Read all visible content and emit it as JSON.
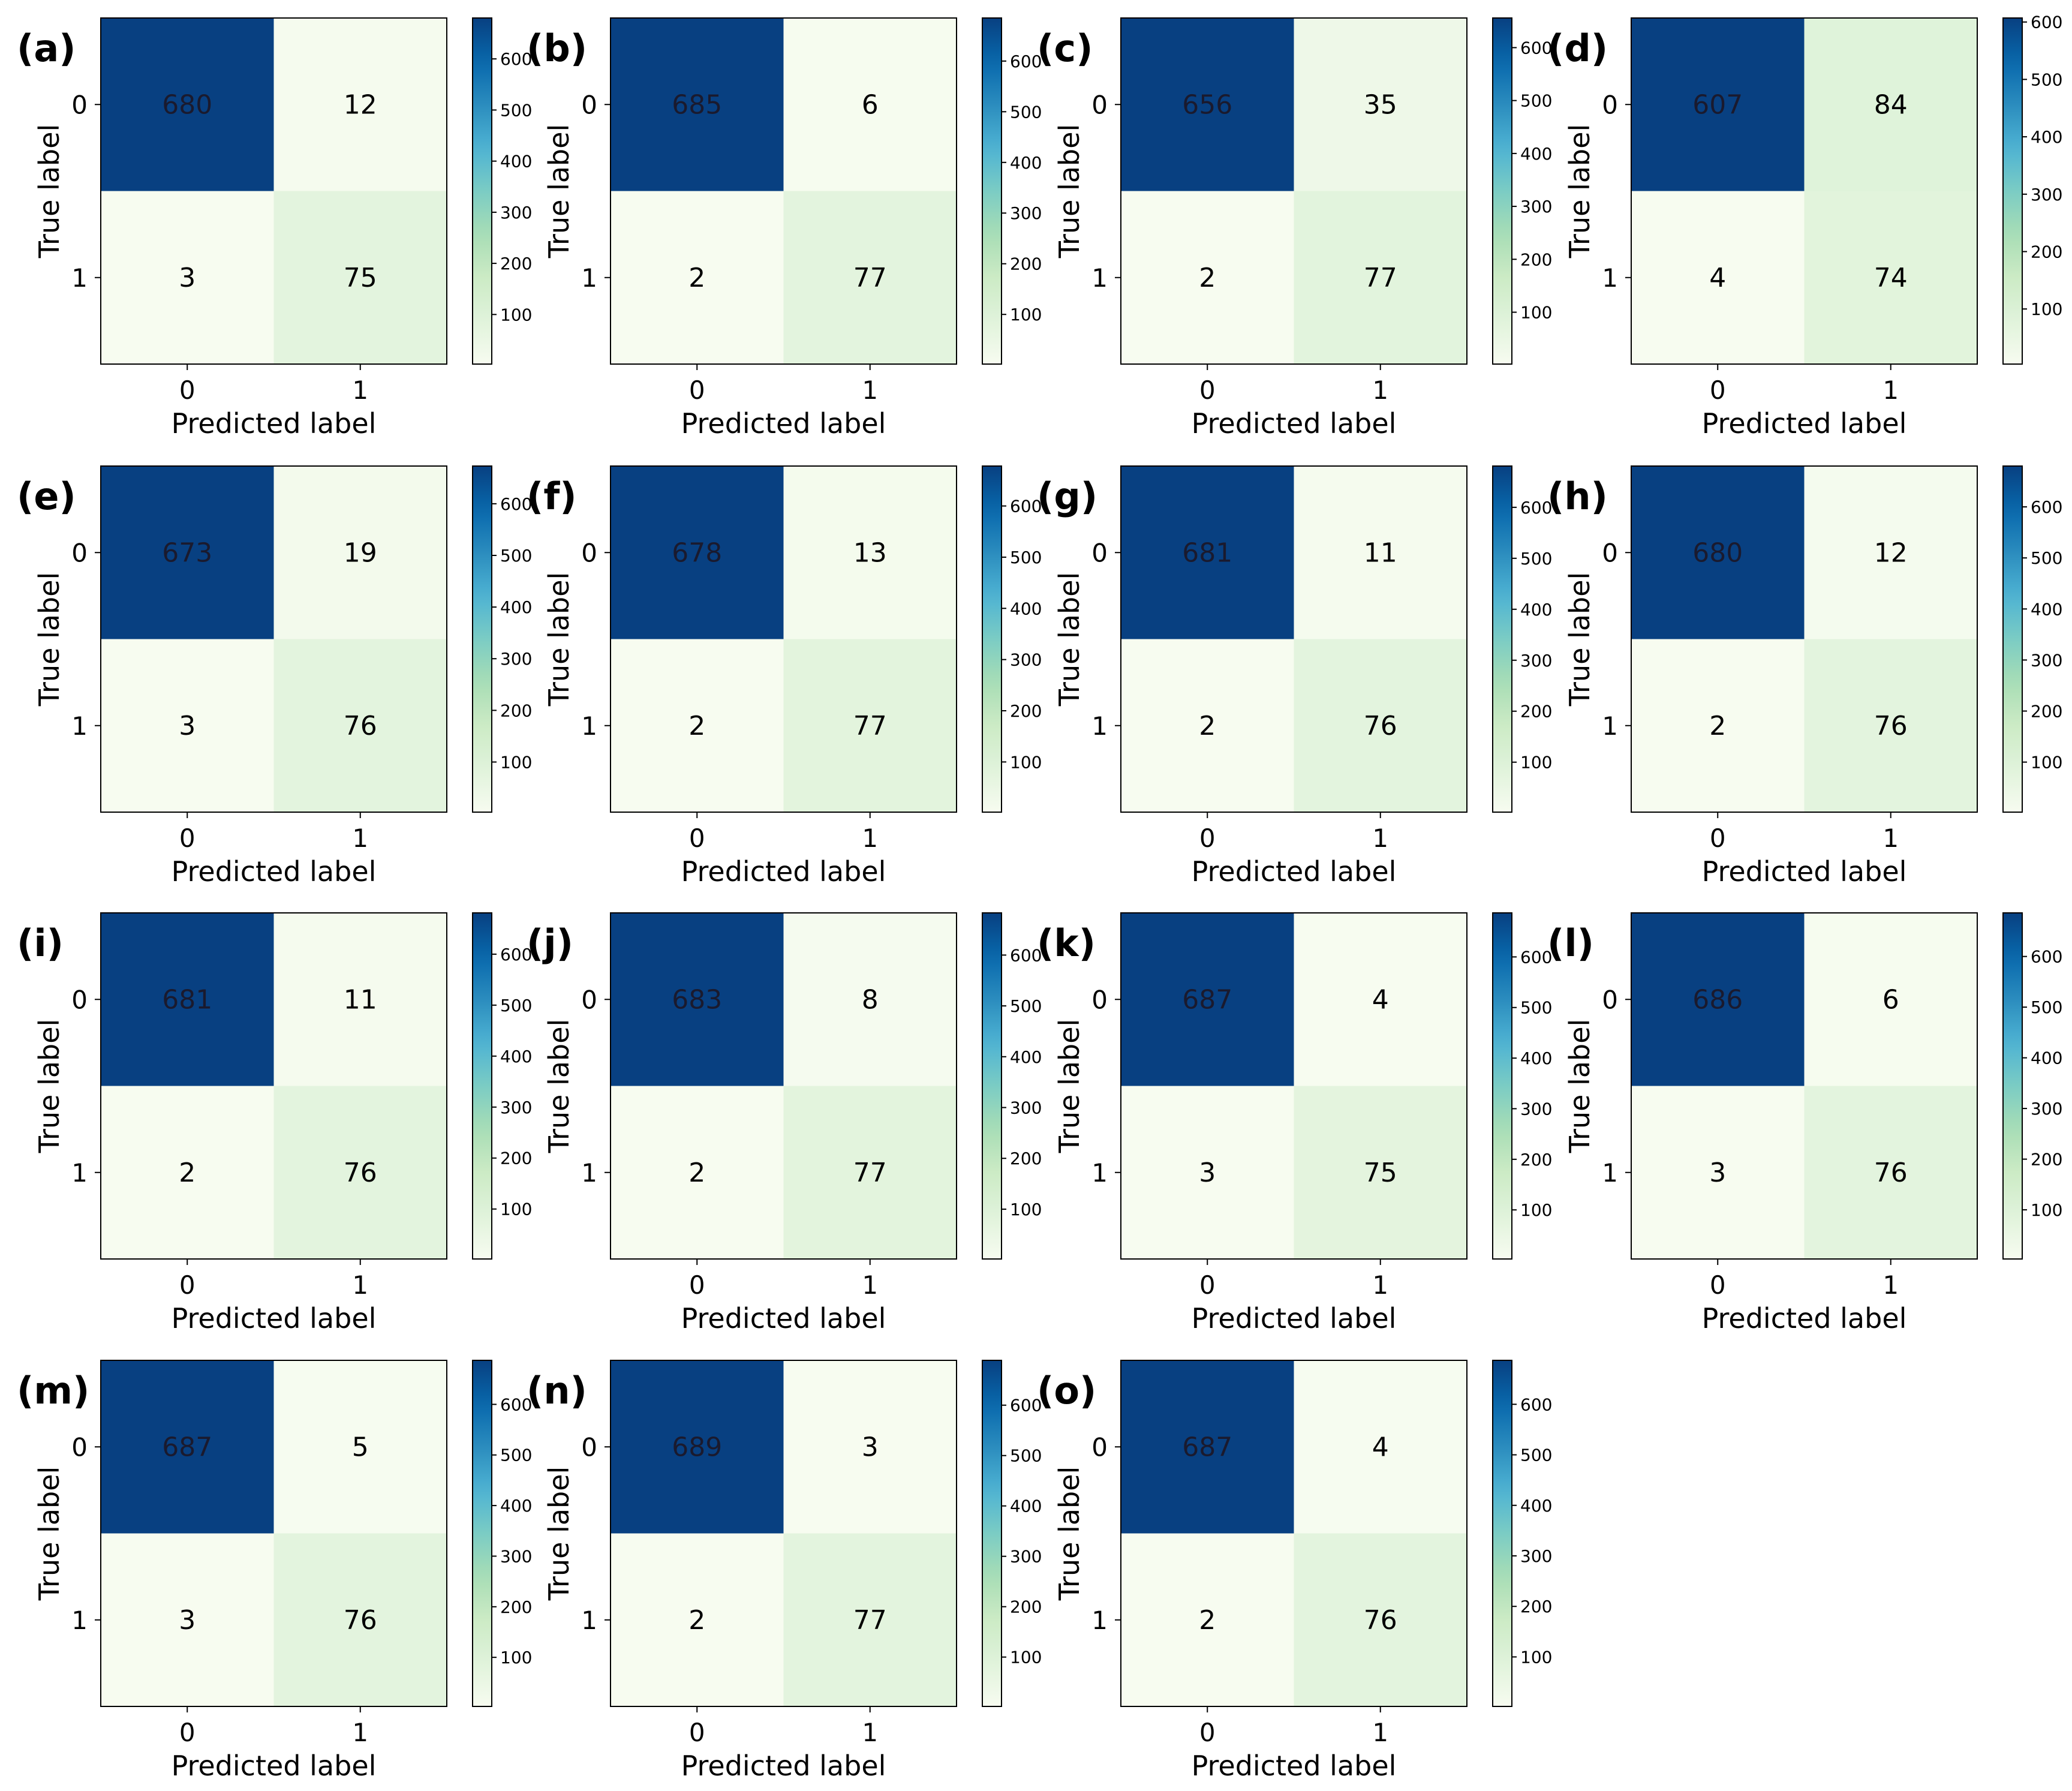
{
  "chart_data": [
    {
      "type": "heatmap",
      "panel": "(a)",
      "xlabel": "Predicted label",
      "ylabel": "True label",
      "x_ticks": [
        "0",
        "1"
      ],
      "y_ticks": [
        "0",
        "1"
      ],
      "values": [
        [
          680,
          12
        ],
        [
          3,
          75
        ]
      ],
      "colorbar_ticks": [
        100,
        200,
        300,
        400,
        500,
        600
      ],
      "colormap": "GnBu"
    },
    {
      "type": "heatmap",
      "panel": "(b)",
      "xlabel": "Predicted label",
      "ylabel": "True label",
      "x_ticks": [
        "0",
        "1"
      ],
      "y_ticks": [
        "0",
        "1"
      ],
      "values": [
        [
          685,
          6
        ],
        [
          2,
          77
        ]
      ],
      "colorbar_ticks": [
        100,
        200,
        300,
        400,
        500,
        600
      ],
      "colormap": "GnBu"
    },
    {
      "type": "heatmap",
      "panel": "(c)",
      "xlabel": "Predicted label",
      "ylabel": "True label",
      "x_ticks": [
        "0",
        "1"
      ],
      "y_ticks": [
        "0",
        "1"
      ],
      "values": [
        [
          656,
          35
        ],
        [
          2,
          77
        ]
      ],
      "colorbar_ticks": [
        100,
        200,
        300,
        400,
        500,
        600
      ],
      "colormap": "GnBu"
    },
    {
      "type": "heatmap",
      "panel": "(d)",
      "xlabel": "Predicted label",
      "ylabel": "True label",
      "x_ticks": [
        "0",
        "1"
      ],
      "y_ticks": [
        "0",
        "1"
      ],
      "values": [
        [
          607,
          84
        ],
        [
          4,
          74
        ]
      ],
      "colorbar_ticks": [
        100,
        200,
        300,
        400,
        500,
        600
      ],
      "colormap": "GnBu"
    },
    {
      "type": "heatmap",
      "panel": "(e)",
      "xlabel": "Predicted label",
      "ylabel": "True label",
      "x_ticks": [
        "0",
        "1"
      ],
      "y_ticks": [
        "0",
        "1"
      ],
      "values": [
        [
          673,
          19
        ],
        [
          3,
          76
        ]
      ],
      "colorbar_ticks": [
        100,
        200,
        300,
        400,
        500,
        600
      ],
      "colormap": "GnBu"
    },
    {
      "type": "heatmap",
      "panel": "(f)",
      "xlabel": "Predicted label",
      "ylabel": "True label",
      "x_ticks": [
        "0",
        "1"
      ],
      "y_ticks": [
        "0",
        "1"
      ],
      "values": [
        [
          678,
          13
        ],
        [
          2,
          77
        ]
      ],
      "colorbar_ticks": [
        100,
        200,
        300,
        400,
        500,
        600
      ],
      "colormap": "GnBu"
    },
    {
      "type": "heatmap",
      "panel": "(g)",
      "xlabel": "Predicted label",
      "ylabel": "True label",
      "x_ticks": [
        "0",
        "1"
      ],
      "y_ticks": [
        "0",
        "1"
      ],
      "values": [
        [
          681,
          11
        ],
        [
          2,
          76
        ]
      ],
      "colorbar_ticks": [
        100,
        200,
        300,
        400,
        500,
        600
      ],
      "colormap": "GnBu"
    },
    {
      "type": "heatmap",
      "panel": "(h)",
      "xlabel": "Predicted label",
      "ylabel": "True label",
      "x_ticks": [
        "0",
        "1"
      ],
      "y_ticks": [
        "0",
        "1"
      ],
      "values": [
        [
          680,
          12
        ],
        [
          2,
          76
        ]
      ],
      "colorbar_ticks": [
        100,
        200,
        300,
        400,
        500,
        600
      ],
      "colormap": "GnBu"
    },
    {
      "type": "heatmap",
      "panel": "(i)",
      "xlabel": "Predicted label",
      "ylabel": "True label",
      "x_ticks": [
        "0",
        "1"
      ],
      "y_ticks": [
        "0",
        "1"
      ],
      "values": [
        [
          681,
          11
        ],
        [
          2,
          76
        ]
      ],
      "colorbar_ticks": [
        100,
        200,
        300,
        400,
        500,
        600
      ],
      "colormap": "GnBu"
    },
    {
      "type": "heatmap",
      "panel": "(j)",
      "xlabel": "Predicted label",
      "ylabel": "True label",
      "x_ticks": [
        "0",
        "1"
      ],
      "y_ticks": [
        "0",
        "1"
      ],
      "values": [
        [
          683,
          8
        ],
        [
          2,
          77
        ]
      ],
      "colorbar_ticks": [
        100,
        200,
        300,
        400,
        500,
        600
      ],
      "colormap": "GnBu"
    },
    {
      "type": "heatmap",
      "panel": "(k)",
      "xlabel": "Predicted label",
      "ylabel": "True label",
      "x_ticks": [
        "0",
        "1"
      ],
      "y_ticks": [
        "0",
        "1"
      ],
      "values": [
        [
          687,
          4
        ],
        [
          3,
          75
        ]
      ],
      "colorbar_ticks": [
        100,
        200,
        300,
        400,
        500,
        600
      ],
      "colormap": "GnBu"
    },
    {
      "type": "heatmap",
      "panel": "(l)",
      "xlabel": "Predicted label",
      "ylabel": "True label",
      "x_ticks": [
        "0",
        "1"
      ],
      "y_ticks": [
        "0",
        "1"
      ],
      "values": [
        [
          686,
          6
        ],
        [
          3,
          76
        ]
      ],
      "colorbar_ticks": [
        100,
        200,
        300,
        400,
        500,
        600
      ],
      "colormap": "GnBu"
    },
    {
      "type": "heatmap",
      "panel": "(m)",
      "xlabel": "Predicted label",
      "ylabel": "True label",
      "x_ticks": [
        "0",
        "1"
      ],
      "y_ticks": [
        "0",
        "1"
      ],
      "values": [
        [
          687,
          5
        ],
        [
          3,
          76
        ]
      ],
      "colorbar_ticks": [
        100,
        200,
        300,
        400,
        500,
        600
      ],
      "colormap": "GnBu"
    },
    {
      "type": "heatmap",
      "panel": "(n)",
      "xlabel": "Predicted label",
      "ylabel": "True label",
      "x_ticks": [
        "0",
        "1"
      ],
      "y_ticks": [
        "0",
        "1"
      ],
      "values": [
        [
          689,
          3
        ],
        [
          2,
          77
        ]
      ],
      "colorbar_ticks": [
        100,
        200,
        300,
        400,
        500,
        600
      ],
      "colormap": "GnBu"
    },
    {
      "type": "heatmap",
      "panel": "(o)",
      "xlabel": "Predicted label",
      "ylabel": "True label",
      "x_ticks": [
        "0",
        "1"
      ],
      "y_ticks": [
        "0",
        "1"
      ],
      "values": [
        [
          687,
          4
        ],
        [
          2,
          76
        ]
      ],
      "colorbar_ticks": [
        100,
        200,
        300,
        400,
        500,
        600
      ],
      "colormap": "GnBu"
    }
  ]
}
